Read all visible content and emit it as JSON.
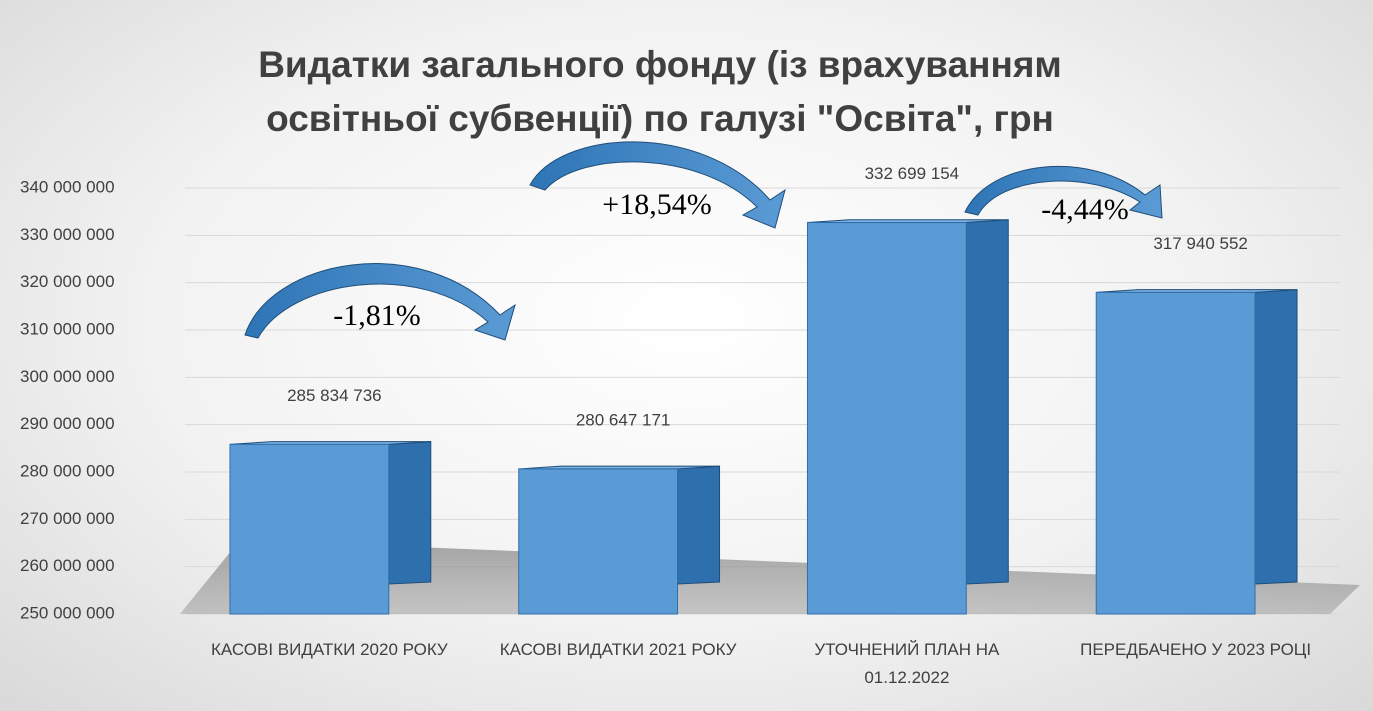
{
  "chart_data": {
    "type": "bar",
    "title": "Видатки загального фонду (із врахуванням освітньої субвенції) по галузі \"Освіта\", грн",
    "categories": [
      "КАСОВІ ВИДАТКИ 2020 РОКУ",
      "КАСОВІ ВИДАТКИ 2021 РОКУ",
      "УТОЧНЕНИЙ ПЛАН НА 01.12.2022",
      "ПЕРЕДБАЧЕНО У 2023 РОЦІ"
    ],
    "values": [
      285834736,
      280647171,
      332699154,
      317940552
    ],
    "value_labels": [
      "285 834 736",
      "280 647 171",
      "332 699 154",
      "317 940 552"
    ],
    "color": "#5b9bd5",
    "ylim": [
      250000000,
      340000000
    ],
    "yticks": [
      {
        "value": 250000000,
        "label": "250 000 000"
      },
      {
        "value": 260000000,
        "label": "260 000 000"
      },
      {
        "value": 270000000,
        "label": "270 000 000"
      },
      {
        "value": 280000000,
        "label": "280 000 000"
      },
      {
        "value": 290000000,
        "label": "290 000 000"
      },
      {
        "value": 300000000,
        "label": "300 000 000"
      },
      {
        "value": 310000000,
        "label": "310 000 000"
      },
      {
        "value": 320000000,
        "label": "320 000 000"
      },
      {
        "value": 330000000,
        "label": "330 000 000"
      },
      {
        "value": 340000000,
        "label": "340 000 000"
      }
    ],
    "grid": true,
    "annotations": [
      "-1,81%",
      "+18,54%",
      "-4,44%"
    ]
  }
}
